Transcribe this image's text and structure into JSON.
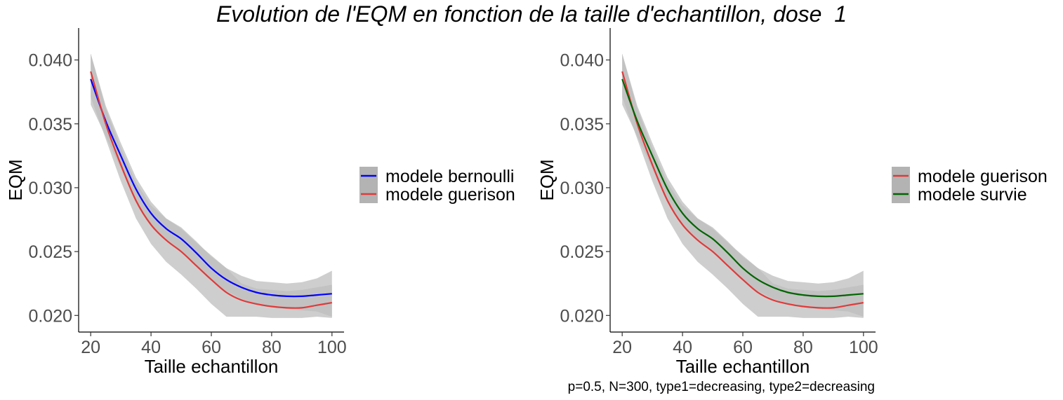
{
  "title": "Evolution de l'EQM en fonction de la taille d'echantillon, dose  1",
  "caption": "p=0.5, N=300, type1=decreasing, type2=decreasing",
  "colors": {
    "ribbon": "#bebebe",
    "red": "#e03a3a",
    "blue": "#0000ff",
    "green": "#006400",
    "tick": "#4d4d4d"
  },
  "chart_data": [
    {
      "type": "line",
      "title": "",
      "xlabel": "Taille echantillon",
      "ylabel": "EQM",
      "xlim": [
        16,
        104
      ],
      "ylim": [
        0.0187,
        0.0425
      ],
      "xticks": [
        20,
        40,
        60,
        80,
        100
      ],
      "xtick_labels": [
        "20",
        "40",
        "60",
        "80",
        "100"
      ],
      "yticks": [
        0.02,
        0.025,
        0.03,
        0.035,
        0.04
      ],
      "ytick_labels": [
        "0.020",
        "0.025",
        "0.030",
        "0.035",
        "0.040"
      ],
      "grid": false,
      "legend_position": "right",
      "series": [
        {
          "name": "modele bernoulli",
          "color": "#0000ff",
          "x": [
            20,
            25,
            30,
            35,
            40,
            45,
            50,
            55,
            60,
            65,
            70,
            75,
            80,
            85,
            90,
            95,
            100
          ],
          "y": [
            0.0385,
            0.0352,
            0.0325,
            0.0299,
            0.028,
            0.0268,
            0.026,
            0.0249,
            0.0237,
            0.0228,
            0.0222,
            0.0218,
            0.0216,
            0.0215,
            0.0215,
            0.0216,
            0.0217
          ],
          "lower": [
            0.0365,
            0.034,
            0.0315,
            0.029,
            0.0271,
            0.026,
            0.0251,
            0.024,
            0.0228,
            0.0219,
            0.0213,
            0.0209,
            0.0207,
            0.0205,
            0.0204,
            0.0203,
            0.0199
          ],
          "upper": [
            0.0405,
            0.0364,
            0.0335,
            0.0308,
            0.0289,
            0.0276,
            0.0269,
            0.0258,
            0.0246,
            0.0237,
            0.0231,
            0.0227,
            0.0226,
            0.0225,
            0.0226,
            0.0229,
            0.0235
          ]
        },
        {
          "name": "modele guerison",
          "color": "#e03a3a",
          "x": [
            20,
            25,
            30,
            35,
            40,
            45,
            50,
            55,
            60,
            65,
            70,
            75,
            80,
            85,
            90,
            95,
            100
          ],
          "y": [
            0.0391,
            0.035,
            0.0318,
            0.029,
            0.0271,
            0.0259,
            0.025,
            0.0239,
            0.0228,
            0.0218,
            0.0212,
            0.0209,
            0.0207,
            0.0206,
            0.0206,
            0.0208,
            0.021
          ],
          "lower": [
            0.0371,
            0.0338,
            0.0305,
            0.0276,
            0.0256,
            0.0242,
            0.0232,
            0.0221,
            0.0209,
            0.0199,
            0.0199,
            0.0199,
            0.0198,
            0.0198,
            0.0198,
            0.0199,
            0.0198
          ],
          "upper": [
            0.0405,
            0.0362,
            0.0331,
            0.0304,
            0.0286,
            0.0276,
            0.0268,
            0.0257,
            0.0247,
            0.0237,
            0.0225,
            0.0221,
            0.022,
            0.0219,
            0.022,
            0.0222,
            0.0224
          ]
        }
      ]
    },
    {
      "type": "line",
      "title": "",
      "xlabel": "Taille echantillon",
      "ylabel": "EQM",
      "xlim": [
        16,
        104
      ],
      "ylim": [
        0.0187,
        0.0425
      ],
      "xticks": [
        20,
        40,
        60,
        80,
        100
      ],
      "xtick_labels": [
        "20",
        "40",
        "60",
        "80",
        "100"
      ],
      "yticks": [
        0.02,
        0.025,
        0.03,
        0.035,
        0.04
      ],
      "ytick_labels": [
        "0.020",
        "0.025",
        "0.030",
        "0.035",
        "0.040"
      ],
      "grid": false,
      "legend_position": "right",
      "series": [
        {
          "name": "modele guerison",
          "color": "#e03a3a",
          "x": [
            20,
            25,
            30,
            35,
            40,
            45,
            50,
            55,
            60,
            65,
            70,
            75,
            80,
            85,
            90,
            95,
            100
          ],
          "y": [
            0.0391,
            0.035,
            0.0318,
            0.029,
            0.0271,
            0.0259,
            0.025,
            0.0239,
            0.0228,
            0.0218,
            0.0212,
            0.0209,
            0.0207,
            0.0206,
            0.0206,
            0.0208,
            0.021
          ],
          "lower": [
            0.0371,
            0.0338,
            0.0305,
            0.0276,
            0.0256,
            0.0242,
            0.0232,
            0.0221,
            0.0209,
            0.0199,
            0.0199,
            0.0199,
            0.0198,
            0.0198,
            0.0198,
            0.0199,
            0.0198
          ],
          "upper": [
            0.0405,
            0.0362,
            0.0331,
            0.0304,
            0.0286,
            0.0276,
            0.0268,
            0.0257,
            0.0247,
            0.0237,
            0.0225,
            0.0221,
            0.022,
            0.0219,
            0.022,
            0.0222,
            0.0224
          ]
        },
        {
          "name": "modele survie",
          "color": "#006400",
          "x": [
            20,
            25,
            30,
            35,
            40,
            45,
            50,
            55,
            60,
            65,
            70,
            75,
            80,
            85,
            90,
            95,
            100
          ],
          "y": [
            0.0385,
            0.0352,
            0.0325,
            0.0299,
            0.028,
            0.0268,
            0.026,
            0.0249,
            0.0237,
            0.0228,
            0.0222,
            0.0218,
            0.0216,
            0.0215,
            0.0215,
            0.0216,
            0.0217
          ],
          "lower": [
            0.0365,
            0.034,
            0.0315,
            0.029,
            0.0271,
            0.026,
            0.0251,
            0.024,
            0.0228,
            0.0219,
            0.0213,
            0.0209,
            0.0207,
            0.0205,
            0.0204,
            0.0203,
            0.0199
          ],
          "upper": [
            0.0405,
            0.0364,
            0.0335,
            0.0308,
            0.0289,
            0.0276,
            0.0269,
            0.0258,
            0.0246,
            0.0237,
            0.0231,
            0.0227,
            0.0226,
            0.0225,
            0.0226,
            0.0229,
            0.0235
          ]
        }
      ]
    }
  ]
}
